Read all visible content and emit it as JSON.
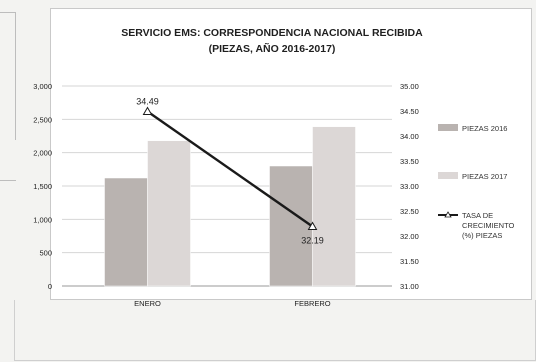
{
  "chart_data": {
    "type": "bar",
    "title": "SERVICIO EMS: CORRESPONDENCIA NACIONAL RECIBIDA",
    "subtitle": "(PIEZAS, AÑO 2016-2017)",
    "categories": [
      "ENERO",
      "FEBRERO"
    ],
    "series": [
      {
        "name": "PIEZAS 2016",
        "type": "bar",
        "axis": "left",
        "color": "#b9b3b0",
        "values": [
          1620,
          1800
        ]
      },
      {
        "name": "PIEZAS 2017",
        "type": "bar",
        "axis": "left",
        "color": "#dcd7d6",
        "values": [
          2180,
          2390
        ]
      },
      {
        "name": "TASA DE CRECIMIENTO (%) PIEZAS",
        "name_lines": [
          "TASA DE",
          "CRECIMIENTO",
          "(%) PIEZAS"
        ],
        "type": "line",
        "axis": "right",
        "color": "#1a1a1a",
        "values": [
          34.49,
          32.19
        ],
        "labels": [
          "34.49",
          "32.19"
        ]
      }
    ],
    "y_left": {
      "range": [
        0,
        3000
      ],
      "ticks": [
        "0",
        "500",
        "1,000",
        "1,500",
        "2,000",
        "2,500",
        "3,000"
      ],
      "tick_values": [
        0,
        500,
        1000,
        1500,
        2000,
        2500,
        3000
      ]
    },
    "y_right": {
      "range": [
        31,
        35
      ],
      "ticks": [
        "31.00",
        "31.50",
        "32.00",
        "32.50",
        "33.00",
        "33.50",
        "34.00",
        "34.50",
        "35.00"
      ],
      "tick_values": [
        31,
        31.5,
        32,
        32.5,
        33,
        33.5,
        34,
        34.5,
        35
      ]
    },
    "grid": true,
    "legend_position": "right"
  }
}
